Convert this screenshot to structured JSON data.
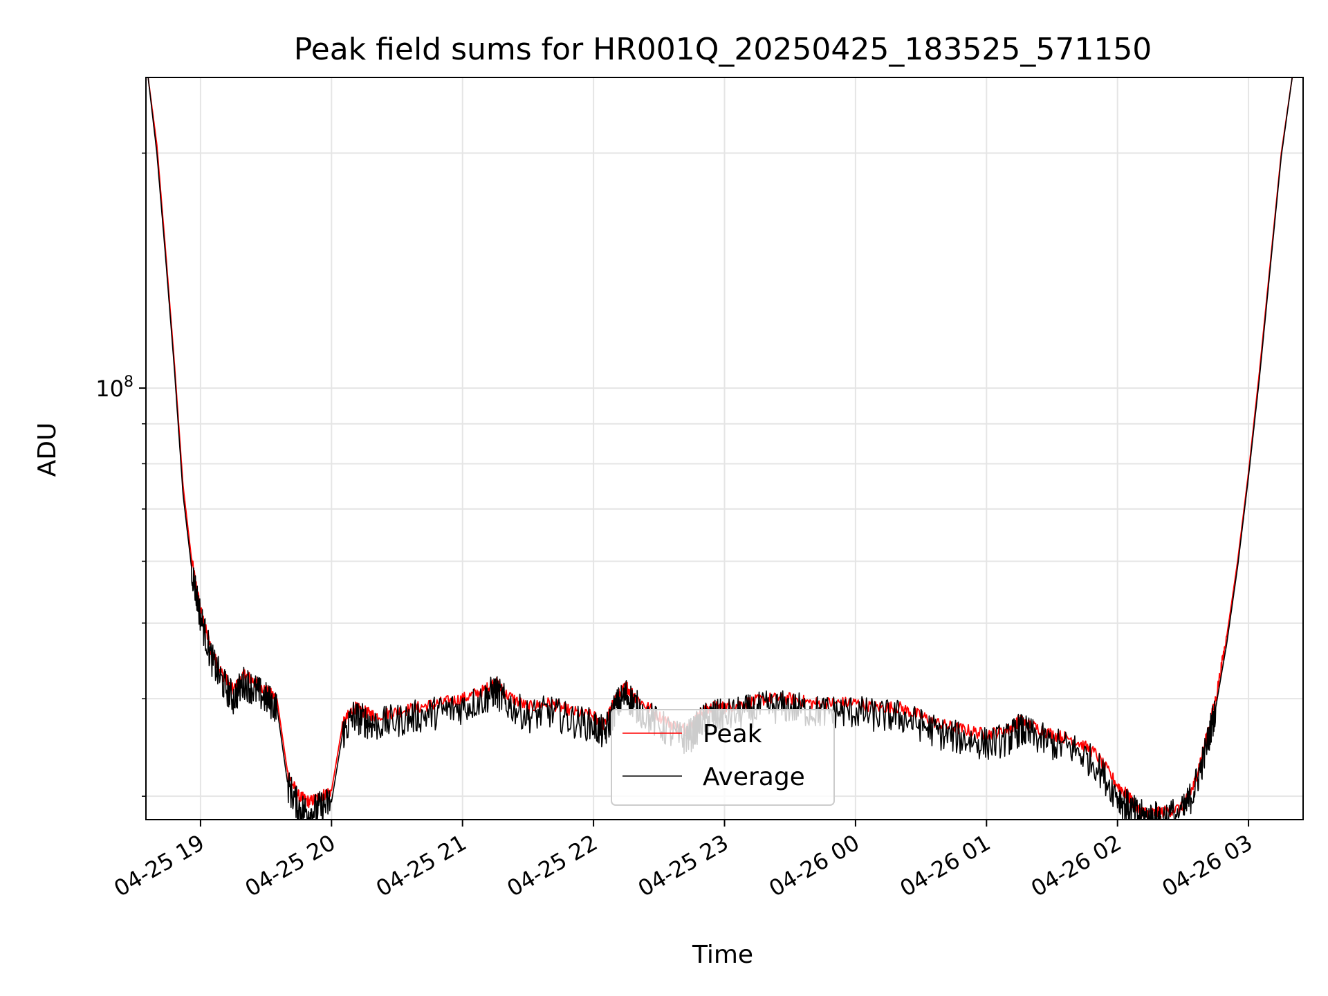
{
  "chart_data": {
    "type": "line",
    "title": "Peak field sums for HR001Q_20250425_183525_571150",
    "xlabel": "Time",
    "ylabel": "ADU",
    "x_axis": "datetime",
    "y_scale": "log",
    "xlim": [
      "2025-04-25 18:35",
      "2025-04-26 03:25"
    ],
    "ylim": [
      28000000,
      250000000
    ],
    "x_ticks": [
      {
        "t": "2025-04-25 19:00",
        "label": "04-25 19"
      },
      {
        "t": "2025-04-25 20:00",
        "label": "04-25 20"
      },
      {
        "t": "2025-04-25 21:00",
        "label": "04-25 21"
      },
      {
        "t": "2025-04-25 22:00",
        "label": "04-25 22"
      },
      {
        "t": "2025-04-25 23:00",
        "label": "04-25 23"
      },
      {
        "t": "2025-04-26 00:00",
        "label": "04-26 00"
      },
      {
        "t": "2025-04-26 01:00",
        "label": "04-26 01"
      },
      {
        "t": "2025-04-26 02:00",
        "label": "04-26 02"
      },
      {
        "t": "2025-04-26 03:00",
        "label": "04-26 03"
      }
    ],
    "y_major_ticks": [
      {
        "v": 100000000,
        "base": "10",
        "exp": "8"
      }
    ],
    "y_minor_ticks": [
      30000000,
      40000000,
      50000000,
      60000000,
      70000000,
      80000000,
      90000000,
      200000000
    ],
    "grid": true,
    "legend_position": "lower center",
    "series": [
      {
        "name": "Peak",
        "color": "#ff0000",
        "x": [
          "2025-04-25 18:36",
          "2025-04-25 18:40",
          "2025-04-25 18:44",
          "2025-04-25 18:48",
          "2025-04-25 18:52",
          "2025-04-25 18:56",
          "2025-04-25 19:00",
          "2025-04-25 19:05",
          "2025-04-25 19:10",
          "2025-04-25 19:15",
          "2025-04-25 19:20",
          "2025-04-25 19:25",
          "2025-04-25 19:30",
          "2025-04-25 19:35",
          "2025-04-25 19:40",
          "2025-04-25 19:45",
          "2025-04-25 19:50",
          "2025-04-25 19:55",
          "2025-04-25 20:00",
          "2025-04-25 20:05",
          "2025-04-25 20:10",
          "2025-04-25 20:15",
          "2025-04-25 20:20",
          "2025-04-25 20:30",
          "2025-04-25 20:40",
          "2025-04-25 20:50",
          "2025-04-25 21:00",
          "2025-04-25 21:10",
          "2025-04-25 21:15",
          "2025-04-25 21:20",
          "2025-04-25 21:30",
          "2025-04-25 21:40",
          "2025-04-25 21:50",
          "2025-04-25 22:00",
          "2025-04-25 22:05",
          "2025-04-25 22:10",
          "2025-04-25 22:15",
          "2025-04-25 22:20",
          "2025-04-25 22:30",
          "2025-04-25 22:40",
          "2025-04-25 22:45",
          "2025-04-25 22:50",
          "2025-04-25 22:55",
          "2025-04-25 23:00",
          "2025-04-25 23:10",
          "2025-04-25 23:20",
          "2025-04-25 23:30",
          "2025-04-25 23:40",
          "2025-04-25 23:50",
          "2025-04-26 00:00",
          "2025-04-26 00:10",
          "2025-04-26 00:20",
          "2025-04-26 00:30",
          "2025-04-26 00:40",
          "2025-04-26 00:50",
          "2025-04-26 01:00",
          "2025-04-26 01:10",
          "2025-04-26 01:15",
          "2025-04-26 01:20",
          "2025-04-26 01:30",
          "2025-04-26 01:40",
          "2025-04-26 01:50",
          "2025-04-26 02:00",
          "2025-04-26 02:05",
          "2025-04-26 02:10",
          "2025-04-26 02:15",
          "2025-04-26 02:20",
          "2025-04-26 02:30",
          "2025-04-26 02:35",
          "2025-04-26 02:40",
          "2025-04-26 02:45",
          "2025-04-26 02:50",
          "2025-04-26 02:55",
          "2025-04-26 03:00",
          "2025-04-26 03:05",
          "2025-04-26 03:10",
          "2025-04-26 03:15",
          "2025-04-26 03:20"
        ],
        "y": [
          250000000,
          205000000,
          150000000,
          108000000,
          75000000,
          60000000,
          52000000,
          46000000,
          43000000,
          41000000,
          43000000,
          42000000,
          41000000,
          40000000,
          32000000,
          30000000,
          29500000,
          30000000,
          30500000,
          37000000,
          39000000,
          38500000,
          38000000,
          38500000,
          39000000,
          39500000,
          40000000,
          41000000,
          42000000,
          40500000,
          39000000,
          39500000,
          38500000,
          38000000,
          37000000,
          40000000,
          41500000,
          40000000,
          38000000,
          36500000,
          37000000,
          38500000,
          39000000,
          39000000,
          39500000,
          40000000,
          40000000,
          39500000,
          39500000,
          39500000,
          39000000,
          39000000,
          38000000,
          37000000,
          36500000,
          36000000,
          36500000,
          37500000,
          37000000,
          36000000,
          35500000,
          34000000,
          31000000,
          30000000,
          28700000,
          28500000,
          28600000,
          29000000,
          31000000,
          35000000,
          40000000,
          48000000,
          60000000,
          78000000,
          105000000,
          145000000,
          200000000,
          250000000
        ]
      },
      {
        "name": "Average",
        "color": "#000000",
        "x": [
          "2025-04-25 18:36",
          "2025-04-25 18:40",
          "2025-04-25 18:44",
          "2025-04-25 18:48",
          "2025-04-25 18:52",
          "2025-04-25 18:56",
          "2025-04-25 19:00",
          "2025-04-25 19:05",
          "2025-04-25 19:10",
          "2025-04-25 19:15",
          "2025-04-25 19:20",
          "2025-04-25 19:25",
          "2025-04-25 19:30",
          "2025-04-25 19:35",
          "2025-04-25 19:40",
          "2025-04-25 19:45",
          "2025-04-25 19:50",
          "2025-04-25 19:55",
          "2025-04-25 20:00",
          "2025-04-25 20:05",
          "2025-04-25 20:10",
          "2025-04-25 20:15",
          "2025-04-25 20:20",
          "2025-04-25 20:30",
          "2025-04-25 20:40",
          "2025-04-25 20:50",
          "2025-04-25 21:00",
          "2025-04-25 21:10",
          "2025-04-25 21:15",
          "2025-04-25 21:20",
          "2025-04-25 21:30",
          "2025-04-25 21:40",
          "2025-04-25 21:50",
          "2025-04-25 22:00",
          "2025-04-25 22:05",
          "2025-04-25 22:10",
          "2025-04-25 22:15",
          "2025-04-25 22:20",
          "2025-04-25 22:30",
          "2025-04-25 22:40",
          "2025-04-25 22:45",
          "2025-04-25 22:50",
          "2025-04-25 22:55",
          "2025-04-25 23:00",
          "2025-04-25 23:10",
          "2025-04-25 23:20",
          "2025-04-25 23:30",
          "2025-04-25 23:40",
          "2025-04-25 23:50",
          "2025-04-26 00:00",
          "2025-04-26 00:10",
          "2025-04-26 00:20",
          "2025-04-26 00:30",
          "2025-04-26 00:40",
          "2025-04-26 00:50",
          "2025-04-26 01:00",
          "2025-04-26 01:10",
          "2025-04-26 01:15",
          "2025-04-26 01:20",
          "2025-04-26 01:30",
          "2025-04-26 01:40",
          "2025-04-26 01:50",
          "2025-04-26 02:00",
          "2025-04-26 02:05",
          "2025-04-26 02:10",
          "2025-04-26 02:15",
          "2025-04-26 02:20",
          "2025-04-26 02:30",
          "2025-04-26 02:35",
          "2025-04-26 02:40",
          "2025-04-26 02:45",
          "2025-04-26 02:50",
          "2025-04-26 02:55",
          "2025-04-26 03:00",
          "2025-04-26 03:05",
          "2025-04-26 03:10",
          "2025-04-26 03:15",
          "2025-04-26 03:20"
        ],
        "y": [
          250000000,
          200000000,
          147000000,
          106000000,
          73000000,
          58500000,
          51000000,
          45000000,
          42000000,
          40000000,
          42000000,
          41000000,
          40000000,
          39000000,
          31000000,
          29000000,
          28600000,
          29000000,
          29500000,
          36000000,
          38000000,
          37500000,
          37000000,
          37500000,
          38000000,
          38500000,
          39000000,
          40000000,
          41000000,
          39500000,
          38000000,
          38500000,
          37500000,
          37000000,
          36000000,
          39000000,
          40500000,
          39000000,
          37000000,
          35500000,
          36000000,
          37500000,
          38000000,
          38000000,
          38500000,
          39000000,
          39000000,
          38500000,
          38500000,
          38500000,
          38000000,
          38000000,
          37000000,
          36000000,
          35500000,
          35000000,
          35500000,
          36500000,
          36000000,
          35000000,
          34500000,
          33000000,
          30000000,
          29000000,
          28300000,
          28100000,
          28200000,
          28600000,
          30500000,
          34000000,
          39000000,
          47000000,
          59000000,
          77000000,
          103000000,
          143000000,
          198000000,
          250000000
        ]
      }
    ]
  }
}
